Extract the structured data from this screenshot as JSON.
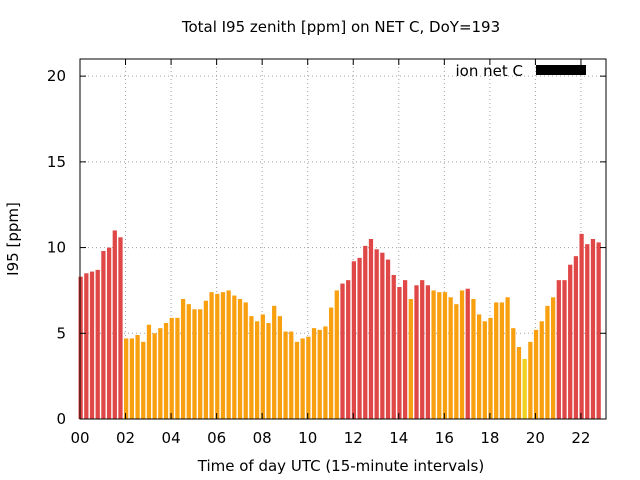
{
  "chart_data": {
    "type": "bar",
    "title": "Total I95 zenith [ppm] on NET C, DoY=193",
    "xlabel": "Time of day UTC (15-minute intervals)",
    "ylabel": "I95 [ppm]",
    "ylim": [
      0,
      21
    ],
    "xlim": [
      0,
      23.1
    ],
    "y_ticks": [
      0,
      5,
      10,
      15,
      20
    ],
    "x_ticks": [
      0,
      2,
      4,
      6,
      8,
      10,
      12,
      14,
      16,
      18,
      20,
      22
    ],
    "x_tick_labels": [
      "00",
      "02",
      "04",
      "06",
      "08",
      "10",
      "12",
      "14",
      "16",
      "18",
      "20",
      "22"
    ],
    "grid": true,
    "legend": {
      "label": "ion net C",
      "color": "#000000",
      "placement": "top-right"
    },
    "bar_interval_hours": 0.25,
    "colors": {
      "high": "#e04848",
      "mid": "#f8a010",
      "low": "#f0d020"
    },
    "series": [
      {
        "values": [
          8.3,
          8.5,
          8.6,
          8.7,
          9.8,
          10.0,
          11.0,
          10.6,
          4.7,
          4.7,
          4.9,
          4.5,
          5.5,
          5.0,
          5.3,
          5.6,
          5.9,
          5.9,
          7.0,
          6.7,
          6.4,
          6.4,
          6.9,
          7.4,
          7.3,
          7.4,
          7.5,
          7.2,
          7.0,
          6.8,
          6.0,
          5.7,
          6.1,
          5.6,
          6.6,
          6.0,
          5.1,
          5.1,
          4.5,
          4.7,
          4.8,
          5.3,
          5.2,
          5.4,
          6.5,
          7.5,
          7.9,
          8.1,
          9.2,
          9.4,
          10.1,
          10.5,
          9.9,
          9.7,
          9.3,
          8.4,
          7.7,
          8.1,
          7.0,
          7.8,
          8.1,
          7.8,
          7.5,
          7.4,
          7.4,
          7.1,
          6.7,
          7.5,
          7.6,
          7.0,
          6.1,
          5.7,
          5.9,
          6.8,
          6.8,
          7.1,
          5.3,
          4.2,
          3.5,
          4.5,
          5.2,
          5.7,
          6.6,
          7.1,
          8.1,
          8.1,
          9.0,
          9.5,
          10.8,
          10.2,
          10.5,
          10.3
        ]
      }
    ]
  }
}
